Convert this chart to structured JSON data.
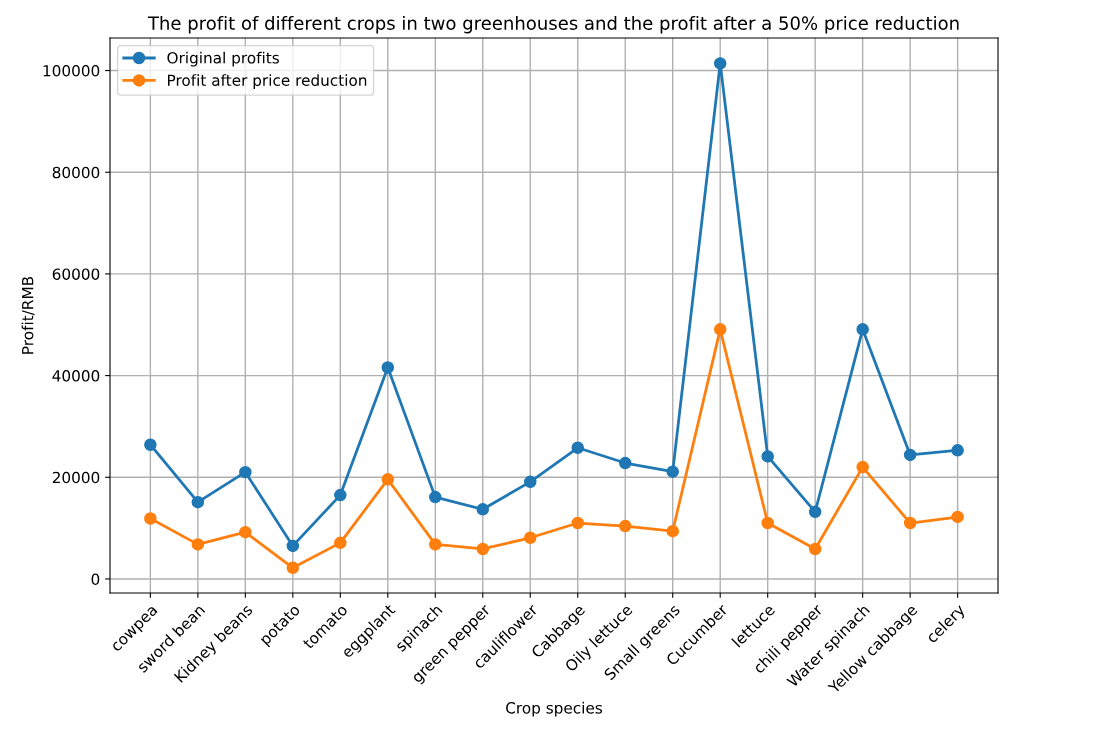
{
  "chart_data": {
    "type": "line",
    "title": "The profit of different crops in two greenhouses and the profit after a 50% price reduction",
    "xlabel": "Crop species",
    "ylabel": "Profit/RMB",
    "categories": [
      "cowpea",
      "sword bean",
      "Kidney beans",
      "potato",
      "tomato",
      "eggplant",
      "spinach",
      "green pepper",
      "cauliflower",
      "Cabbage",
      "Oily lettuce",
      "Small greens",
      "Cucumber",
      "lettuce",
      "chili pepper",
      "Water spinach",
      "Yellow cabbage",
      "celery"
    ],
    "series": [
      {
        "name": "Original profits",
        "color": "#1f77b4",
        "values": [
          26400,
          15100,
          21000,
          6500,
          16500,
          41600,
          16100,
          13700,
          19100,
          25800,
          22800,
          21100,
          101400,
          24100,
          13200,
          49100,
          24400,
          25300
        ]
      },
      {
        "name": "Profit after price reduction",
        "color": "#ff7f0e",
        "values": [
          11900,
          6800,
          9200,
          2200,
          7100,
          19600,
          6800,
          5900,
          8100,
          11000,
          10400,
          9400,
          49100,
          11000,
          5900,
          22000,
          11000,
          12200
        ]
      }
    ],
    "ylim": [
      -2760,
      106400
    ],
    "yticks": [
      0,
      20000,
      40000,
      60000,
      80000,
      100000
    ],
    "grid": true,
    "legend": "top left",
    "marker": "circle",
    "line_style": "solid"
  }
}
